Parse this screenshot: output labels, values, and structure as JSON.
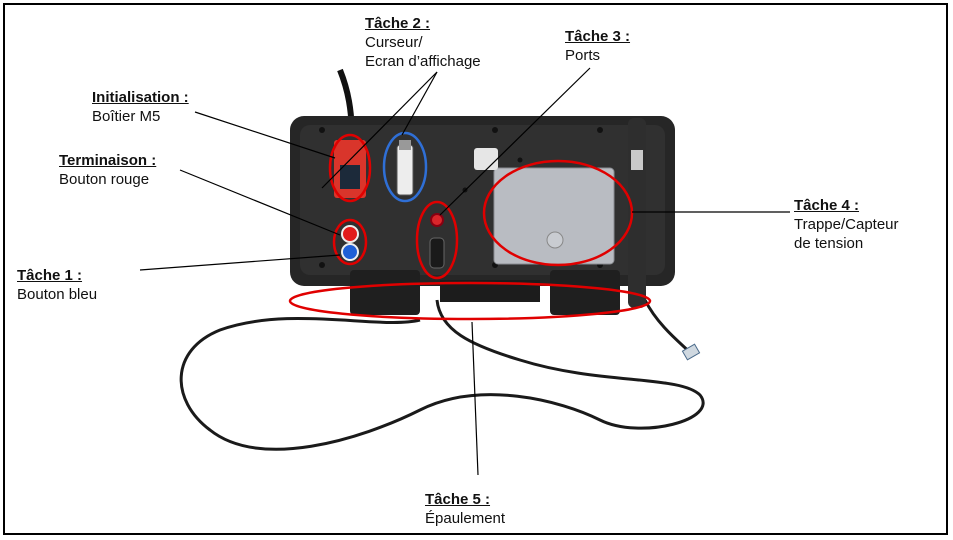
{
  "labels": {
    "initialisation": {
      "title": "Initialisation :",
      "desc": "Boîtier M5"
    },
    "terminaison": {
      "title": "Terminaison :",
      "desc": "Bouton rouge"
    },
    "tache1": {
      "title": "Tâche 1 :",
      "desc": "Bouton bleu"
    },
    "tache2": {
      "title": "Tâche 2 :",
      "desc_line1": "Curseur/",
      "desc_line2": "Ecran d’affichage"
    },
    "tache3": {
      "title": "Tâche 3 :",
      "desc": "Ports"
    },
    "tache4": {
      "title": "Tâche 4 :",
      "desc_line1": "Trappe/Capteur",
      "desc_line2": "de tension"
    },
    "tache5": {
      "title": "Tâche 5 :",
      "desc": "Épaulement"
    }
  },
  "colors": {
    "highlight_red": "#e00000",
    "highlight_blue": "#2f6fd6",
    "device_body": "#262626",
    "m5_case": "#d9352b",
    "trap_plate": "#b9bcc2"
  }
}
